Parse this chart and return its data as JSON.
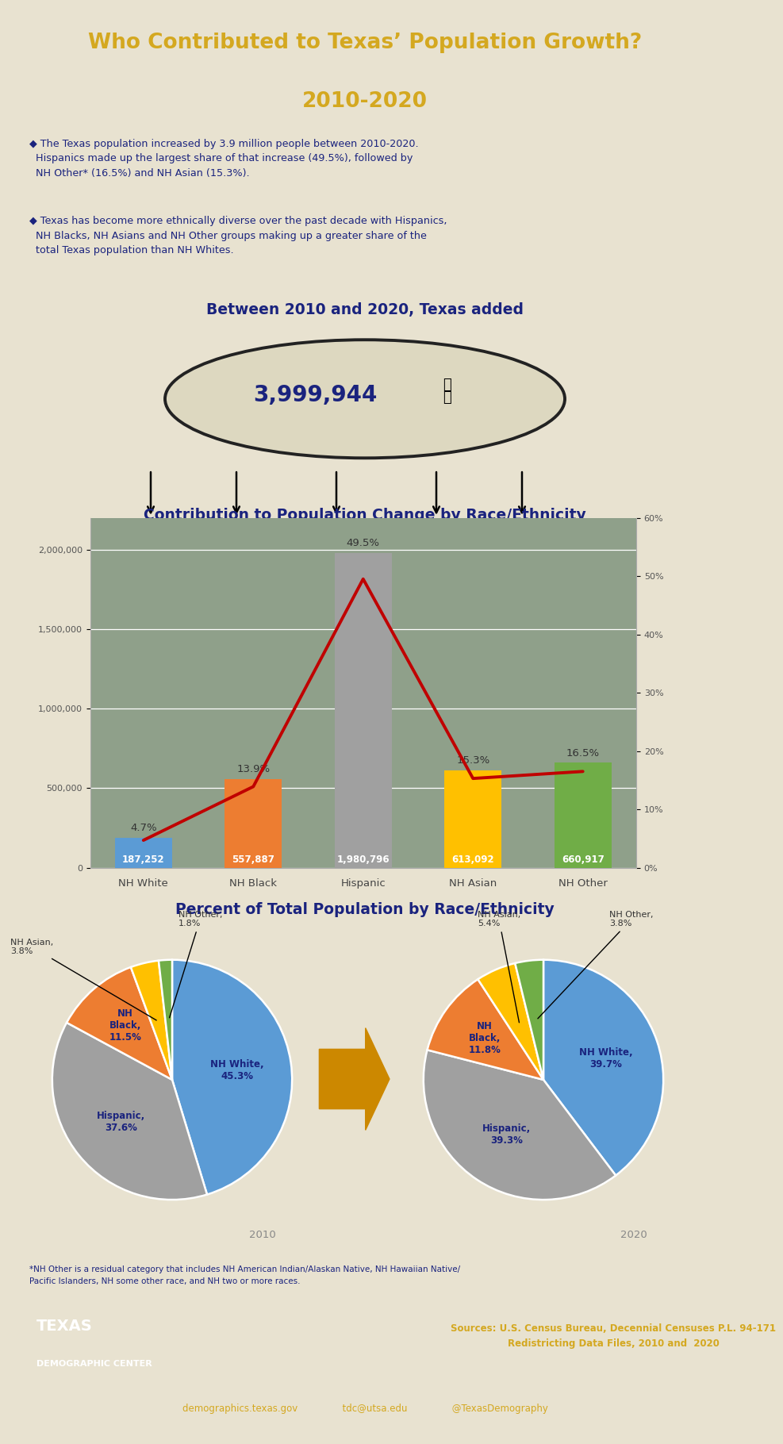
{
  "title_line1": "Who Contributed to Texas’ Population Growth?",
  "title_line2": "2010-2020",
  "title_bg": "#2e3a8c",
  "title_color": "#d4a820",
  "body_bg": "#b8bfa8",
  "bullet_bg": "#e8e2d0",
  "bullet_color": "#1a237e",
  "bullet1_line1": "◆ The Texas population increased by 3.9 million people between 2010-2020.",
  "bullet1_line2": "  Hispanics made up the largest share of that increase (49.5%), followed by",
  "bullet1_line3": "  NH Other* (16.5%) and NH Asian (15.3%).",
  "bullet2_line1": "◆ Texas has become more ethnically diverse over the past decade with Hispanics,",
  "bullet2_line2": "  NH Blacks, NH Asians and NH Other groups making up a greater share of the",
  "bullet2_line3": "  total Texas population than NH Whites.",
  "oval_text": "3,999,944",
  "oval_title": "Between 2010 and 2020, Texas added",
  "bar_categories": [
    "NH White",
    "NH Black",
    "Hispanic",
    "NH Asian",
    "NH Other"
  ],
  "bar_values": [
    187252,
    557887,
    1980796,
    613092,
    660917
  ],
  "bar_colors": [
    "#5b9bd5",
    "#ed7d31",
    "#a0a0a0",
    "#ffc000",
    "#70ad47"
  ],
  "bar_labels": [
    "187,252",
    "557,887",
    "1,980,796",
    "613,092",
    "660,917"
  ],
  "line_pcts": [
    4.7,
    13.9,
    49.5,
    15.3,
    16.5
  ],
  "line_color": "#c00000",
  "bar_chart_title": "Contribution to Population Change by Race/Ethnicity",
  "bar_chart_bg": "#8fa08a",
  "ylim_left": [
    0,
    2200000
  ],
  "ylim_right": [
    0,
    60
  ],
  "pie_title": "Percent of Total Population by Race/Ethnicity",
  "pie2010_values": [
    45.3,
    37.6,
    11.5,
    3.8,
    1.8
  ],
  "pie2020_values": [
    39.7,
    39.3,
    11.8,
    5.4,
    3.8
  ],
  "pie_colors": [
    "#5b9bd5",
    "#a0a0a0",
    "#ed7d31",
    "#ffc000",
    "#70ad47"
  ],
  "pie_bg_top": "#7a9aa8",
  "pie_bg_bottom": "#8ab0b8",
  "footer_bg": "#1a237e",
  "source_color": "#d4a820",
  "source_text": "Sources: U.S. Census Bureau, Decennial Censuses P.L. 94-171\nRedistricting Data Files, 2010 and  2020",
  "note_text": "*NH Other is a residual category that includes NH American Indian/Alaskan Native, NH Hawaiian Native/\nPacific Islanders, NH some other race, and NH two or more races.",
  "footer_links": "demographics.texas.gov               tdc@utsa.edu               @TexasDemography",
  "footer_link_color": "#d4a820",
  "arrow_color": "#cc9900"
}
